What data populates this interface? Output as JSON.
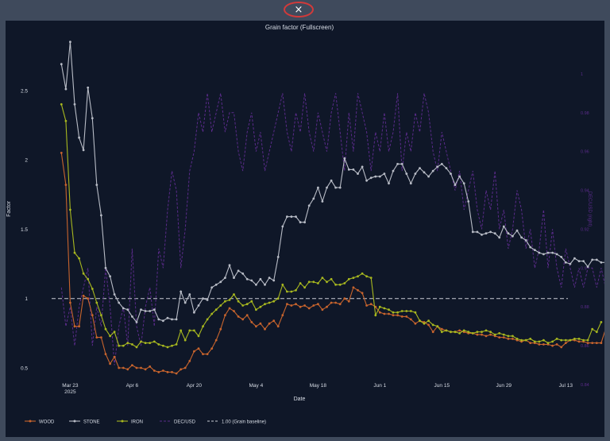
{
  "close_button": {
    "glyph": "×",
    "icon": "close-icon"
  },
  "chart_data": {
    "type": "line",
    "title": "Grain factor (Fullscreen)",
    "xlabel": "Date",
    "ylabel": "Factor",
    "y2label": "DEC/USD (right)",
    "ylim": [
      0.38,
      2.9
    ],
    "y2lim": [
      0.84,
      1.02
    ],
    "yticks": [
      0.5,
      1,
      1.5,
      2,
      2.5
    ],
    "ytick_labels": [
      "0.5",
      "1",
      "1.5",
      "2",
      "2.5"
    ],
    "y2ticks": [
      0.84,
      0.86,
      0.88,
      0.9,
      0.92,
      0.94,
      0.96,
      0.98,
      1.0
    ],
    "y2tick_labels": [
      "0.84",
      "0.86",
      "0.88",
      "0.9",
      "0.92",
      "0.94",
      "0.96",
      "0.98",
      "1"
    ],
    "xticks": [
      {
        "date": "2025-03-23",
        "label": "Mar 23",
        "sublabel": "2025"
      },
      {
        "date": "2025-04-06",
        "label": "Apr 6",
        "sublabel": ""
      },
      {
        "date": "2025-04-20",
        "label": "Apr 20",
        "sublabel": ""
      },
      {
        "date": "2025-05-04",
        "label": "May 4",
        "sublabel": ""
      },
      {
        "date": "2025-05-18",
        "label": "May 18",
        "sublabel": ""
      },
      {
        "date": "2025-06-01",
        "label": "Jun 1",
        "sublabel": ""
      },
      {
        "date": "2025-06-15",
        "label": "Jun 15",
        "sublabel": ""
      },
      {
        "date": "2025-06-29",
        "label": "Jun 29",
        "sublabel": ""
      },
      {
        "date": "2025-07-13",
        "label": "Jul 13",
        "sublabel": ""
      }
    ],
    "xlim": [
      "2025-03-17",
      "2025-07-16"
    ],
    "baseline": {
      "value": 1.0,
      "name": "1.00 (Grain baseline)"
    },
    "grid": false,
    "legend_position": "bottom-left",
    "series": [
      {
        "name": "WOOD",
        "color": "#c8642d",
        "axis": "y",
        "style": "line+markers",
        "x_start": "2025-03-21",
        "values": [
          2.05,
          1.82,
          0.97,
          0.8,
          0.8,
          1.02,
          1.0,
          0.88,
          0.72,
          0.72,
          0.6,
          0.53,
          0.58,
          0.5,
          0.5,
          0.49,
          0.52,
          0.5,
          0.5,
          0.49,
          0.51,
          0.48,
          0.47,
          0.48,
          0.47,
          0.47,
          0.46,
          0.49,
          0.5,
          0.55,
          0.62,
          0.64,
          0.6,
          0.6,
          0.64,
          0.7,
          0.78,
          0.88,
          0.93,
          0.91,
          0.87,
          0.85,
          0.88,
          0.83,
          0.8,
          0.82,
          0.78,
          0.82,
          0.84,
          0.8,
          0.88,
          0.96,
          0.95,
          0.96,
          0.94,
          0.95,
          0.93,
          0.95,
          0.96,
          0.92,
          0.94,
          0.97,
          0.97,
          0.96,
          1.0,
          0.98,
          1.08,
          1.06,
          1.04,
          0.95,
          0.96,
          0.94,
          0.9,
          0.89,
          0.89,
          0.88,
          0.88,
          0.87,
          0.87,
          0.85,
          0.82,
          0.84,
          0.83,
          0.81,
          0.76,
          0.8,
          0.78,
          0.77,
          0.76,
          0.76,
          0.77,
          0.76,
          0.75,
          0.75,
          0.74,
          0.74,
          0.73,
          0.74,
          0.73,
          0.72,
          0.72,
          0.71,
          0.71,
          0.7,
          0.69,
          0.7,
          0.68,
          0.68,
          0.67,
          0.67,
          0.67,
          0.66,
          0.67,
          0.65,
          0.68,
          0.7,
          0.7,
          0.69,
          0.69,
          0.68,
          0.68,
          0.68,
          0.68,
          0.78,
          0.79,
          0.82
        ]
      },
      {
        "name": "STONE",
        "color": "#b8bcc6",
        "axis": "y",
        "style": "line+markers",
        "x_start": "2025-03-21",
        "values": [
          2.69,
          2.51,
          2.85,
          2.4,
          2.16,
          2.07,
          2.52,
          2.3,
          1.82,
          1.6,
          1.22,
          1.16,
          1.03,
          0.97,
          0.93,
          0.92,
          0.87,
          0.83,
          0.92,
          0.91,
          0.91,
          0.92,
          0.85,
          0.84,
          0.86,
          0.85,
          0.85,
          1.05,
          0.97,
          1.03,
          0.9,
          0.95,
          1.0,
          0.99,
          1.08,
          1.1,
          1.12,
          1.15,
          1.24,
          1.15,
          1.2,
          1.18,
          1.14,
          1.13,
          1.1,
          1.14,
          1.1,
          1.15,
          1.13,
          1.3,
          1.52,
          1.59,
          1.59,
          1.59,
          1.55,
          1.55,
          1.67,
          1.72,
          1.8,
          1.7,
          1.8,
          1.85,
          1.8,
          1.8,
          2.01,
          1.93,
          1.93,
          1.9,
          1.95,
          1.85,
          1.87,
          1.88,
          1.88,
          1.9,
          1.83,
          1.92,
          1.97,
          1.97,
          1.9,
          1.83,
          1.9,
          1.94,
          1.91,
          1.88,
          1.92,
          1.95,
          1.97,
          1.94,
          1.9,
          1.82,
          1.88,
          1.83,
          1.7,
          1.48,
          1.48,
          1.46,
          1.47,
          1.48,
          1.47,
          1.44,
          1.52,
          1.47,
          1.45,
          1.49,
          1.44,
          1.42,
          1.37,
          1.35,
          1.33,
          1.32,
          1.33,
          1.33,
          1.32,
          1.3,
          1.26,
          1.25,
          1.29,
          1.27,
          1.27,
          1.23,
          1.28,
          1.28,
          1.26,
          1.26,
          1.28,
          1.27,
          1.25,
          1.27,
          1.27,
          1.26,
          1.26,
          1.44,
          1.51,
          1.48
        ]
      },
      {
        "name": "IRON",
        "color": "#a8b81f",
        "axis": "y",
        "style": "line+markers",
        "x_start": "2025-03-21",
        "values": [
          2.4,
          2.28,
          1.64,
          1.33,
          1.29,
          1.18,
          1.14,
          1.07,
          0.97,
          0.88,
          0.78,
          0.73,
          0.76,
          0.66,
          0.66,
          0.68,
          0.67,
          0.65,
          0.69,
          0.68,
          0.68,
          0.69,
          0.67,
          0.66,
          0.65,
          0.66,
          0.67,
          0.77,
          0.7,
          0.77,
          0.77,
          0.73,
          0.8,
          0.85,
          0.89,
          0.92,
          0.95,
          0.98,
          0.99,
          1.03,
          0.98,
          0.95,
          0.96,
          0.98,
          0.92,
          0.94,
          0.96,
          0.97,
          0.98,
          1.0,
          1.1,
          1.05,
          1.05,
          1.06,
          1.11,
          1.08,
          1.12,
          1.12,
          1.11,
          1.15,
          1.12,
          1.14,
          1.1,
          1.1,
          1.11,
          1.14,
          1.15,
          1.16,
          1.18,
          1.16,
          1.15,
          0.88,
          0.94,
          0.93,
          0.92,
          0.9,
          0.9,
          0.91,
          0.91,
          0.91,
          0.9,
          0.84,
          0.82,
          0.84,
          0.81,
          0.8,
          0.76,
          0.77,
          0.76,
          0.76,
          0.75,
          0.77,
          0.76,
          0.75,
          0.76,
          0.76,
          0.77,
          0.76,
          0.74,
          0.75,
          0.74,
          0.73,
          0.73,
          0.71,
          0.7,
          0.7,
          0.71,
          0.69,
          0.69,
          0.7,
          0.68,
          0.69,
          0.71,
          0.7,
          0.7,
          0.7,
          0.71,
          0.71,
          0.7,
          0.7,
          0.78,
          0.76,
          0.83
        ]
      },
      {
        "name": "DEC/USD",
        "color": "#5a2b8a",
        "axis": "y2",
        "style": "dashed",
        "x_start": "2025-03-21",
        "values": [
          0.89,
          0.87,
          0.88,
          0.86,
          0.88,
          0.89,
          0.9,
          0.86,
          0.88,
          0.87,
          0.9,
          0.88,
          0.85,
          0.87,
          0.88,
          0.86,
          0.91,
          0.87,
          0.86,
          0.88,
          0.89,
          0.87,
          0.91,
          0.9,
          0.93,
          0.95,
          0.94,
          0.9,
          0.92,
          0.95,
          0.96,
          0.98,
          0.97,
          0.99,
          0.97,
          0.98,
          0.99,
          0.97,
          0.98,
          0.98,
          0.96,
          0.95,
          0.97,
          0.98,
          0.96,
          0.97,
          0.95,
          0.96,
          0.97,
          0.98,
          0.99,
          0.97,
          0.96,
          0.98,
          0.97,
          0.99,
          0.97,
          0.96,
          0.98,
          0.97,
          0.96,
          0.98,
          0.99,
          0.97,
          0.95,
          0.98,
          0.96,
          0.99,
          0.98,
          0.97,
          0.95,
          0.97,
          0.96,
          0.98,
          0.96,
          0.97,
          0.99,
          0.95,
          0.97,
          0.96,
          0.98,
          0.97,
          0.99,
          0.98,
          0.96,
          0.95,
          0.97,
          0.96,
          0.95,
          0.94,
          0.95,
          0.93,
          0.94,
          0.95,
          0.93,
          0.92,
          0.94,
          0.93,
          0.95,
          0.92,
          0.93,
          0.91,
          0.92,
          0.94,
          0.93,
          0.91,
          0.92,
          0.9,
          0.91,
          0.93,
          0.9,
          0.92,
          0.9,
          0.89,
          0.91,
          0.9,
          0.89,
          0.9,
          0.89,
          0.9,
          0.9,
          0.89,
          0.9,
          0.89,
          0.9,
          0.9,
          0.91,
          0.9,
          0.91,
          0.9,
          0.91,
          0.9,
          0.91,
          0.9
        ]
      }
    ]
  }
}
